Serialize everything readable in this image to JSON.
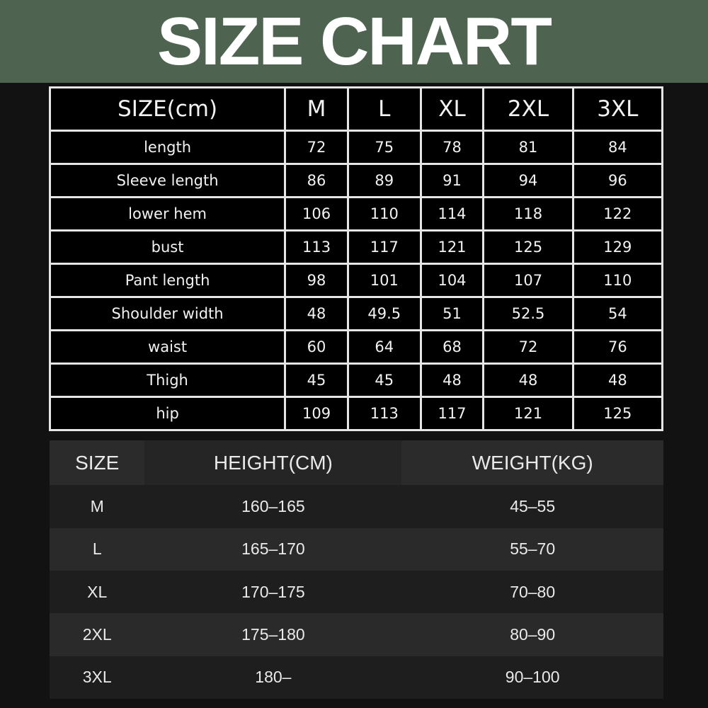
{
  "title": "SIZE CHART",
  "colors": {
    "banner": "#4f6450",
    "background": "#121212"
  },
  "measurements": {
    "header": [
      "SIZE(cm)",
      "M",
      "L",
      "XL",
      "2XL",
      "3XL"
    ],
    "rows": [
      [
        "length",
        "72",
        "75",
        "78",
        "81",
        "84"
      ],
      [
        "Sleeve length",
        "86",
        "89",
        "91",
        "94",
        "96"
      ],
      [
        "lower hem",
        "106",
        "110",
        "114",
        "118",
        "122"
      ],
      [
        "bust",
        "113",
        "117",
        "121",
        "125",
        "129"
      ],
      [
        "Pant length",
        "98",
        "101",
        "104",
        "107",
        "110"
      ],
      [
        "Shoulder width",
        "48",
        "49.5",
        "51",
        "52.5",
        "54"
      ],
      [
        "waist",
        "60",
        "64",
        "68",
        "72",
        "76"
      ],
      [
        "Thigh",
        "45",
        "45",
        "48",
        "48",
        "48"
      ],
      [
        "hip",
        "109",
        "113",
        "117",
        "121",
        "125"
      ]
    ]
  },
  "fit_guide": {
    "header": [
      "SIZE",
      "HEIGHT(CM)",
      "WEIGHT(KG)"
    ],
    "rows": [
      [
        "M",
        "160–165",
        "45–55"
      ],
      [
        "L",
        "165–170",
        "55–70"
      ],
      [
        "XL",
        "170–175",
        "70–80"
      ],
      [
        "2XL",
        "175–180",
        "80–90"
      ],
      [
        "3XL",
        "180–",
        "90–100"
      ]
    ]
  }
}
